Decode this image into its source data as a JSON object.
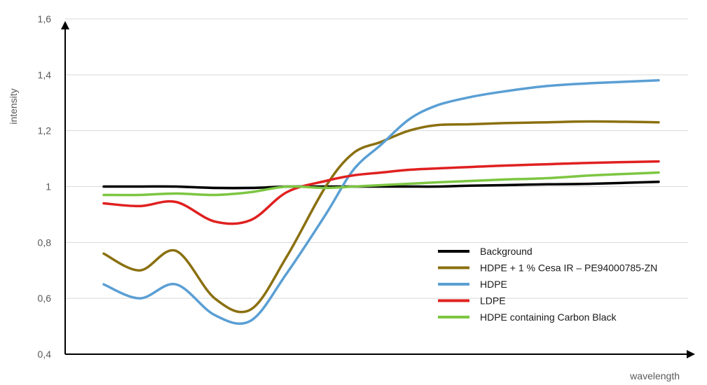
{
  "chart_data": {
    "type": "line",
    "title": "",
    "xlabel": "wavelength",
    "ylabel": "intensity",
    "ylim": [
      0.4,
      1.6
    ],
    "yticks": [
      {
        "value": 0.4,
        "label": "0,4"
      },
      {
        "value": 0.6,
        "label": "0,6"
      },
      {
        "value": 0.8,
        "label": "0,8"
      },
      {
        "value": 1.0,
        "label": "1"
      },
      {
        "value": 1.2,
        "label": "1,2"
      },
      {
        "value": 1.4,
        "label": "1,4"
      },
      {
        "value": 1.6,
        "label": "1,6"
      }
    ],
    "xlim": [
      0,
      1
    ],
    "grid": {
      "horizontal": true,
      "vertical": false
    },
    "legend_position": "bottom-right",
    "x": [
      0.0,
      0.065,
      0.13,
      0.2,
      0.265,
      0.33,
      0.4,
      0.45,
      0.5,
      0.55,
      0.6,
      0.66,
      0.72,
      0.8,
      0.88,
      1.0
    ],
    "series": [
      {
        "name": "Background",
        "color": "#000000",
        "values": [
          1.0,
          1.0,
          1.0,
          0.995,
          0.995,
          1.0,
          1.0,
          1.0,
          1.0,
          1.0,
          1.0,
          1.003,
          1.005,
          1.008,
          1.01,
          1.017
        ]
      },
      {
        "name": "HDPE + 1 % Cesa IR – PE94000785-ZN",
        "color": "#8a7010",
        "values": [
          0.76,
          0.7,
          0.77,
          0.6,
          0.56,
          0.75,
          1.0,
          1.12,
          1.16,
          1.2,
          1.22,
          1.223,
          1.227,
          1.23,
          1.233,
          1.23
        ]
      },
      {
        "name": "HDPE",
        "color": "#5a9fd4",
        "values": [
          0.65,
          0.6,
          0.65,
          0.54,
          0.52,
          0.69,
          0.9,
          1.06,
          1.15,
          1.24,
          1.29,
          1.32,
          1.34,
          1.36,
          1.37,
          1.38
        ]
      },
      {
        "name": "LDPE",
        "color": "#e02020",
        "values": [
          0.94,
          0.93,
          0.945,
          0.875,
          0.88,
          0.98,
          1.02,
          1.04,
          1.05,
          1.06,
          1.065,
          1.07,
          1.075,
          1.08,
          1.085,
          1.09
        ]
      },
      {
        "name": "HDPE containing Carbon Black",
        "color": "#7dc642",
        "values": [
          0.97,
          0.97,
          0.975,
          0.97,
          0.98,
          1.0,
          0.995,
          1.0,
          1.005,
          1.01,
          1.015,
          1.02,
          1.025,
          1.03,
          1.04,
          1.05
        ]
      }
    ]
  }
}
